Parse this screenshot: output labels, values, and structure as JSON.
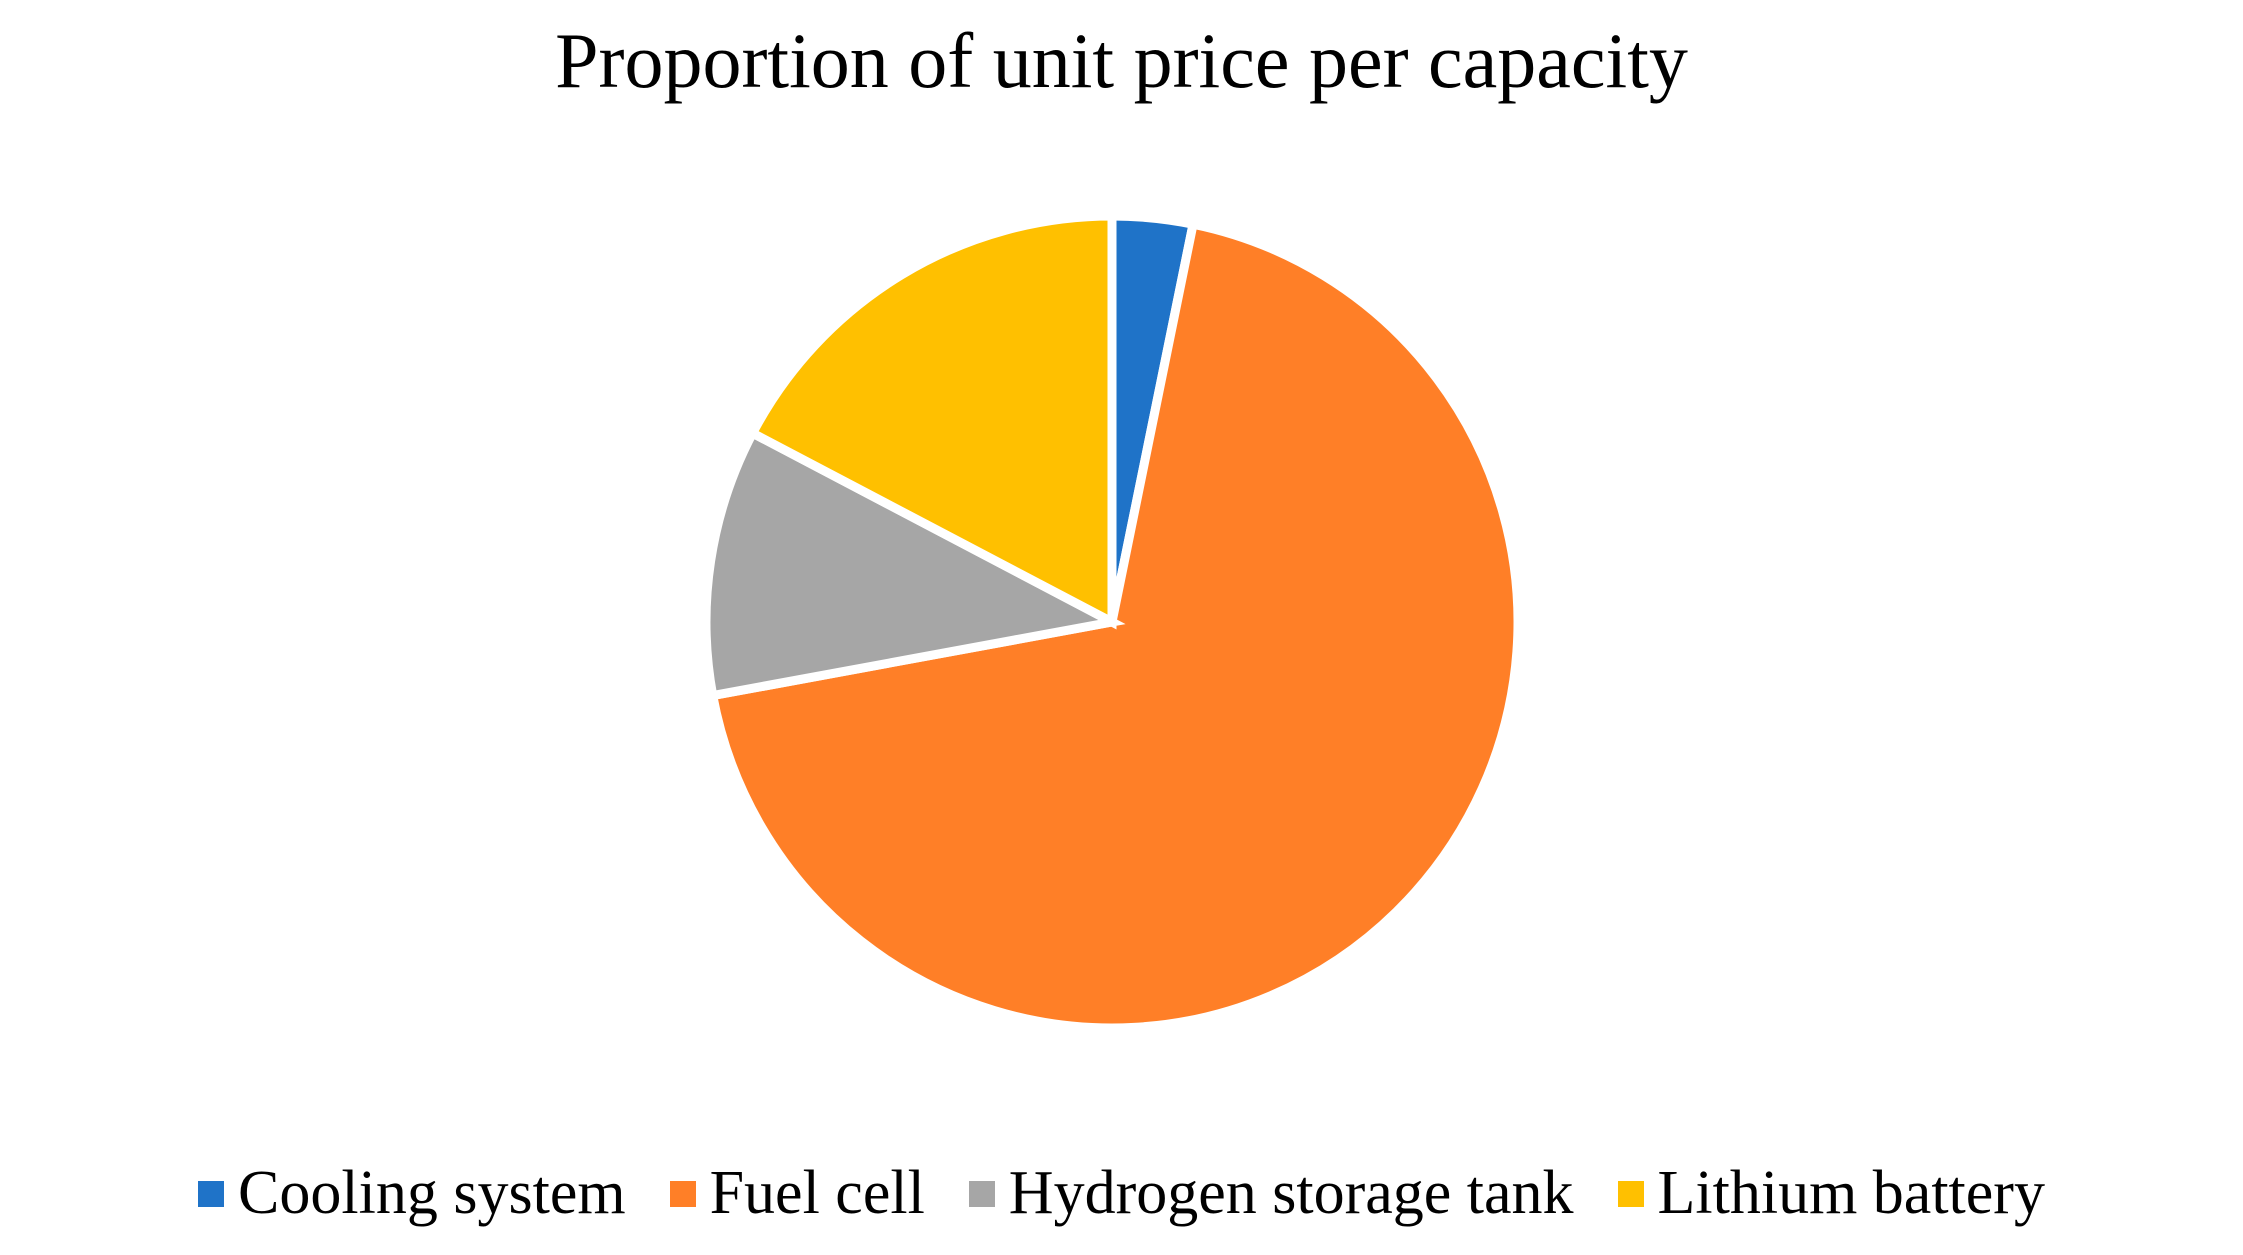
{
  "chart_data": {
    "type": "pie",
    "title": "Proportion of unit price per capacity",
    "categories": [
      "Cooling system",
      "Fuel cell",
      "Hydrogen storage tank",
      "Lithium battery"
    ],
    "values": [
      3.2,
      68.9,
      10.6,
      17.3
    ],
    "colors": [
      "#1F73C8",
      "#FF7F27",
      "#A6A6A6",
      "#FFC000"
    ],
    "start_angle_deg": 0,
    "direction": "clockwise",
    "legend_position": "bottom",
    "border_color": "#FFFFFF"
  }
}
